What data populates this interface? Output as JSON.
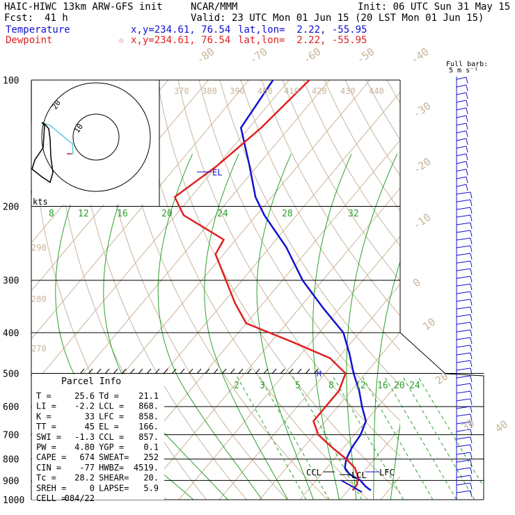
{
  "header": {
    "model": "HAIC-HIWC 13km ARW-GFS init",
    "org": "NCAR/MMM",
    "init": "Init: 06 UTC Sun 31 May 15",
    "fcst_label": "Fcst:",
    "fcst_value": "41 h",
    "valid": "Valid: 23 UTC Mon 01 Jun 15 (20 LST Mon 01 Jun 15)"
  },
  "legend": {
    "temperature": {
      "label": "Temperature",
      "xy": "x,y=234.61, 76.54",
      "latlon": "lat,lon=  2.22, -55.95",
      "color": "#1010d0"
    },
    "dewpoint": {
      "label": "Dewpoint",
      "marker": "☆",
      "xy": "x,y=234.61, 76.54",
      "latlon": "lat,lon=  2.22, -55.95",
      "color": "#e02020"
    }
  },
  "barb_key": {
    "line1": "Full barb:",
    "line2": "5 m s⁻¹"
  },
  "hodograph": {
    "units": "kts",
    "rings": [
      10,
      20
    ]
  },
  "annotations": {
    "el": "EL",
    "ccl": "CCL",
    "lcl": "LCL",
    "lfc": "LFC",
    "m": "M"
  },
  "parcel_info": {
    "title": "Parcel Info",
    "rows": [
      [
        "T  =",
        "25.6",
        "Td =",
        "21.1"
      ],
      [
        "LI =",
        "-2.2",
        "LCL =",
        "868."
      ],
      [
        "K  =",
        "33",
        "LFC =",
        "858."
      ],
      [
        "TT =",
        "45",
        "EL  =",
        "166."
      ],
      [
        "SWI =",
        "-1.3",
        "CCL =",
        "857."
      ],
      [
        "PW =",
        "4.80",
        "YGP =",
        "0.1"
      ],
      [
        "CAPE =",
        "674",
        "SWEAT=",
        "252"
      ],
      [
        "CIN =",
        "-77",
        "HWBZ=",
        "4519."
      ],
      [
        "Tc =",
        "28.2",
        "SHEAR=",
        "20."
      ],
      [
        "SREH =",
        "0",
        "LAPSE=",
        "5.9"
      ],
      [
        "CELL =",
        "084/22",
        "",
        ""
      ]
    ]
  },
  "chart_data": {
    "type": "line",
    "title": "",
    "ylabel": "",
    "y_axis": "pressure_hPa_log",
    "pressure_levels": [
      100,
      200,
      300,
      400,
      500,
      600,
      700,
      800,
      900,
      1000
    ],
    "isotherm_labels": [
      "-80",
      "-70",
      "-60",
      "-50",
      "-40",
      "-30",
      "-20",
      "-10",
      "0",
      "10",
      "20",
      "30",
      "40"
    ],
    "theta_labels": [
      "370",
      "380",
      "390",
      "400",
      "410",
      "420",
      "430",
      "440",
      "290",
      "280",
      "270"
    ],
    "mixing_ratio_top_labels": [
      "8",
      "12",
      "16",
      "20",
      "24",
      "28",
      "32"
    ],
    "mixing_ratio_low_labels": [
      "2",
      "3",
      "5",
      "8",
      "12",
      "16",
      "20",
      "24"
    ],
    "series": [
      {
        "name": "Temperature",
        "color": "#1010d0",
        "points": [
          [
            100,
            -84
          ],
          [
            130,
            -82
          ],
          [
            160,
            -72
          ],
          [
            190,
            -64
          ],
          [
            210,
            -58
          ],
          [
            250,
            -46
          ],
          [
            300,
            -35
          ],
          [
            350,
            -24
          ],
          [
            400,
            -14
          ],
          [
            450,
            -8
          ],
          [
            500,
            -3
          ],
          [
            550,
            2
          ],
          [
            600,
            6
          ],
          [
            650,
            10
          ],
          [
            700,
            11.5
          ],
          [
            750,
            12
          ],
          [
            800,
            13
          ],
          [
            840,
            14.5
          ],
          [
            870,
            17
          ],
          [
            900,
            21
          ],
          [
            930,
            23.5
          ],
          [
            950,
            25.6
          ]
        ]
      },
      {
        "name": "Dewpoint",
        "color": "#e02020",
        "points": [
          [
            100,
            -75
          ],
          [
            130,
            -77
          ],
          [
            160,
            -80
          ],
          [
            190,
            -84
          ],
          [
            210,
            -78
          ],
          [
            240,
            -63
          ],
          [
            260,
            -62
          ],
          [
            300,
            -54
          ],
          [
            340,
            -47
          ],
          [
            380,
            -40
          ],
          [
            420,
            -25
          ],
          [
            460,
            -12
          ],
          [
            500,
            -5
          ],
          [
            550,
            -3
          ],
          [
            600,
            -3
          ],
          [
            650,
            -3
          ],
          [
            700,
            1
          ],
          [
            750,
            7
          ],
          [
            800,
            13
          ],
          [
            840,
            17
          ],
          [
            880,
            19.5
          ],
          [
            920,
            21
          ],
          [
            950,
            21.1
          ]
        ]
      }
    ]
  }
}
